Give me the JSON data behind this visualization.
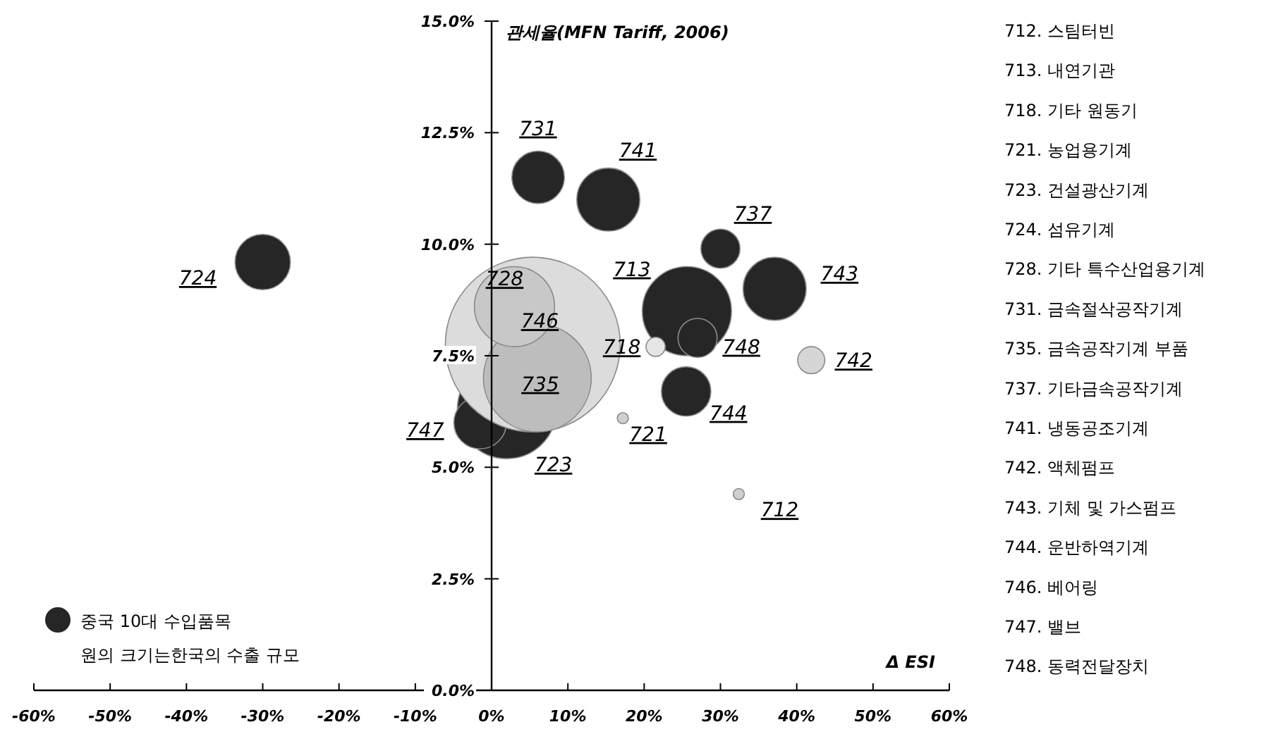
{
  "chart_data": {
    "type": "bubble",
    "xlabel": "Δ ESI",
    "ylabel": "관세율(MFN Tariff, 2006)",
    "marker": "circle",
    "legend": "bottom left",
    "xlim": [
      -60,
      60
    ],
    "ylim": [
      0,
      15
    ],
    "xticks": [
      {
        "value": -60,
        "label": "-60%"
      },
      {
        "value": -50,
        "label": "-50%"
      },
      {
        "value": -40,
        "label": "-40%"
      },
      {
        "value": -30,
        "label": "-30%"
      },
      {
        "value": -20,
        "label": "-20%"
      },
      {
        "value": -10,
        "label": "-10%"
      },
      {
        "value": 0,
        "label": "0%"
      },
      {
        "value": 10,
        "label": "10%"
      },
      {
        "value": 20,
        "label": "20%"
      },
      {
        "value": 30,
        "label": "30%"
      },
      {
        "value": 40,
        "label": "40%"
      },
      {
        "value": 50,
        "label": "50%"
      },
      {
        "value": 60,
        "label": "60%"
      }
    ],
    "yticks": [
      {
        "value": 0,
        "label": "0.0%"
      },
      {
        "value": 2.5,
        "label": "2.5%"
      },
      {
        "value": 5,
        "label": "5.0%"
      },
      {
        "value": 7.5,
        "label": "7.5%"
      },
      {
        "value": 10,
        "label": "10.0%"
      },
      {
        "value": 12.5,
        "label": "12.5%"
      },
      {
        "value": 15,
        "label": "15.0%"
      }
    ],
    "series": [
      {
        "name": "중국 10대 수입품목",
        "color": "#262626",
        "x": [
          25.6,
          2,
          -30,
          6.1,
          30,
          15.3,
          37.1,
          25.5,
          -1.5,
          27
        ],
        "values": [
          8.5,
          6.3,
          9.6,
          11.5,
          9.9,
          11,
          9,
          6.7,
          6,
          7.9
        ],
        "sizes": [
          0.26,
          0.32,
          0.1,
          0.09,
          0.05,
          0.13,
          0.13,
          0.08,
          0.09,
          0.05
        ]
      },
      {
        "colors": [
          "#dcdcdc",
          "#bdbdbd",
          "#c8c8c8",
          "#cfcfcf",
          "#e6e6e6",
          "#cfcfcf",
          "#d6d6d6"
        ],
        "x": [
          5.4,
          6,
          3,
          32.4,
          21.5,
          17.2,
          41.9
        ],
        "values": [
          7.75,
          7,
          8.6,
          4.4,
          7.7,
          6.1,
          7.4
        ],
        "sizes": [
          1,
          0.38,
          0.21,
          0.004,
          0.012,
          0.004,
          0.024
        ]
      }
    ],
    "annotations": [
      "원의 크기는한국의 수출 규모",
      "712. 스팀터빈",
      "713. 내연기관",
      "718. 기타 원동기",
      "721. 농업용기계",
      "723. 건설광산기계",
      "724. 섬유기계",
      "728.  기타 특수산업용기계",
      "731.  금속절삭공작기계",
      "735.  금속공작기계 부품",
      "737.  기타금속공작기계",
      "741.  냉동공조기계",
      "742.  액체펌프",
      "743.  기체 및 가스펌프",
      "744.  운반하역기계",
      "746.  베어링",
      "747.  밸브",
      "748.  동력전달장치",
      {
        "text": "724",
        "x": -30,
        "y": 9.6
      },
      {
        "text": "731",
        "x": 6.1,
        "y": 11.5
      },
      {
        "text": "741",
        "x": 15.3,
        "y": 11
      },
      {
        "text": "737",
        "x": 30,
        "y": 9.9
      },
      {
        "text": "743",
        "x": 37.1,
        "y": 9
      },
      {
        "text": "713",
        "x": 25.6,
        "y": 8.5
      },
      {
        "text": "728",
        "x": 3,
        "y": 8.6
      },
      {
        "text": "746",
        "x": 5.4,
        "y": 7.75
      },
      {
        "text": "718",
        "x": 21.5,
        "y": 7.7
      },
      {
        "text": "748",
        "x": 27,
        "y": 7.9
      },
      {
        "text": "742",
        "x": 41.9,
        "y": 7.4
      },
      {
        "text": "735",
        "x": 6,
        "y": 7
      },
      {
        "text": "744",
        "x": 25.5,
        "y": 6.7
      },
      {
        "text": "721",
        "x": 17.2,
        "y": 6.1
      },
      {
        "text": "723",
        "x": 2,
        "y": 6.3
      },
      {
        "text": "712",
        "x": 32.4,
        "y": 4.4
      },
      {
        "text": "747",
        "x": -1.5,
        "y": 6
      }
    ]
  }
}
